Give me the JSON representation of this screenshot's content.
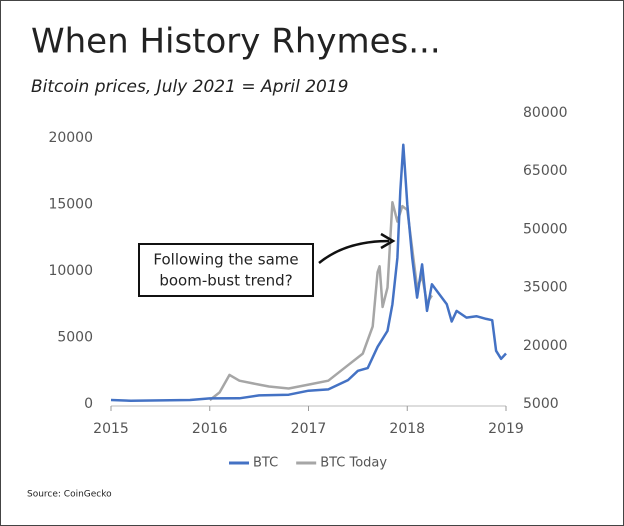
{
  "chart_data": {
    "type": "line",
    "title": "When History Rhymes...",
    "subtitle": "Bitcoin prices, July 2021 = April 2019",
    "source": "Source: CoinGecko",
    "annotation": [
      "Following the same",
      "boom-bust trend?"
    ],
    "xlim": [
      2015,
      2019
    ],
    "xticks": [
      2015,
      2016,
      2017,
      2018,
      2019
    ],
    "ylim": [
      0,
      21880
    ],
    "yticks": [
      0,
      5000,
      10000,
      15000,
      20000
    ],
    "y2lim": [
      5000,
      80000
    ],
    "y2ticks": [
      5000,
      20000,
      35000,
      50000,
      65000,
      80000
    ],
    "series": [
      {
        "name": "BTC",
        "color": "#4472c4",
        "axis": "y",
        "x": [
          2015,
          2015.2,
          2015.5,
          2015.8,
          2016,
          2016.3,
          2016.5,
          2016.8,
          2017,
          2017.2,
          2017.4,
          2017.5,
          2017.6,
          2017.7,
          2017.8,
          2017.85,
          2017.9,
          2017.93,
          2017.96,
          2018,
          2018.05,
          2018.1,
          2018.15,
          2018.2,
          2018.25,
          2018.3,
          2018.4,
          2018.45,
          2018.5,
          2018.6,
          2018.7,
          2018.8,
          2018.86,
          2018.9,
          2018.95,
          2019
        ],
        "values": [
          300,
          250,
          270,
          300,
          420,
          430,
          650,
          700,
          1000,
          1100,
          1800,
          2500,
          2700,
          4300,
          5500,
          7500,
          11000,
          16000,
          19500,
          15000,
          11000,
          8000,
          10500,
          7000,
          9000,
          8500,
          7500,
          6200,
          7000,
          6500,
          6600,
          6400,
          6300,
          4000,
          3400,
          3800
        ]
      },
      {
        "name": "BTC Today",
        "color": "#a6a6a6",
        "axis": "y2",
        "x": [
          2016,
          2016.1,
          2016.2,
          2016.3,
          2016.5,
          2016.6,
          2016.8,
          2017,
          2017.2,
          2017.4,
          2017.55,
          2017.65,
          2017.7,
          2017.72,
          2017.75,
          2017.8,
          2017.85,
          2017.9,
          2017.95,
          2018,
          2018.05,
          2018.1,
          2018.15,
          2018.2,
          2018.25
        ],
        "values": [
          6000,
          8000,
          12500,
          11000,
          10000,
          9500,
          9000,
          10000,
          11000,
          15000,
          18000,
          25000,
          39000,
          40500,
          30000,
          35000,
          57000,
          52000,
          56000,
          55000,
          45000,
          35000,
          38000,
          31000,
          33000
        ]
      }
    ]
  }
}
